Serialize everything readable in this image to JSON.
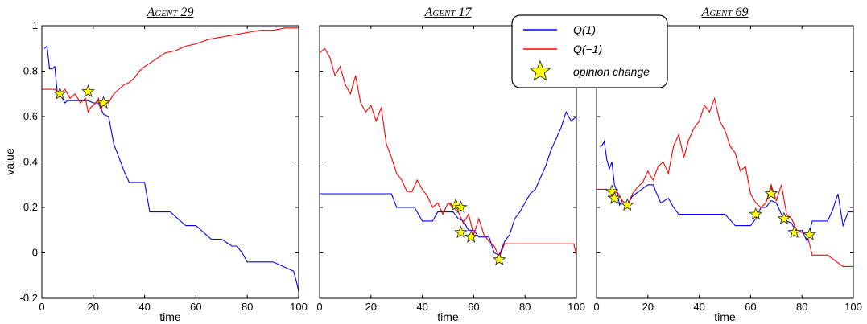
{
  "chart_data": {
    "type": "line",
    "xlabel": "time",
    "ylabel": "value",
    "xlim": [
      0,
      100
    ],
    "ylim": [
      -0.2,
      1.0
    ],
    "x_ticks": [
      0,
      20,
      40,
      60,
      80,
      100
    ],
    "y_ticks": [
      -0.2,
      0,
      0.2,
      0.4,
      0.6,
      0.8,
      1
    ],
    "y_tick_labels": [
      "-0.2",
      "0",
      "0.2",
      "0.4",
      "0.6",
      "0.8",
      "1"
    ],
    "colors": {
      "q1": "#0000ff",
      "qm1": "#ff0000",
      "star_fill": "#ffff00",
      "star_stroke": "#333333"
    },
    "legend": {
      "placement": "top-center",
      "entries": [
        {
          "label": "Q(1)",
          "kind": "line",
          "color": "#0000ff"
        },
        {
          "label": "Q(−1)",
          "kind": "line",
          "color": "#ff0000"
        },
        {
          "label": "opinion change",
          "kind": "star",
          "color": "#ffff00"
        }
      ]
    },
    "panels": [
      {
        "title": "Agent 29",
        "series": [
          {
            "name": "Q(1)",
            "color": "#0000ff",
            "x": [
              1,
              2,
              3,
              4,
              5,
              6,
              7,
              8,
              9,
              10,
              12,
              14,
              16,
              18,
              20,
              22,
              24,
              26,
              28,
              30,
              32,
              34,
              40,
              42,
              50,
              56,
              60,
              66,
              70,
              74,
              76,
              78,
              80,
              88,
              90,
              98,
              99,
              100
            ],
            "y": [
              0.9,
              0.91,
              0.81,
              0.81,
              0.82,
              0.71,
              0.7,
              0.68,
              0.66,
              0.67,
              0.67,
              0.67,
              0.67,
              0.67,
              0.66,
              0.66,
              0.61,
              0.6,
              0.48,
              0.42,
              0.36,
              0.31,
              0.31,
              0.18,
              0.18,
              0.12,
              0.12,
              0.06,
              0.06,
              0.03,
              0.03,
              0.0,
              -0.04,
              -0.04,
              -0.04,
              -0.08,
              -0.12,
              -0.17
            ]
          },
          {
            "name": "Q(−1)",
            "color": "#ff0000",
            "x": [
              0,
              5,
              7,
              9,
              11,
              13,
              15,
              17,
              18,
              19,
              20,
              21,
              22,
              23,
              24,
              26,
              28,
              30,
              32,
              34,
              36,
              38,
              40,
              44,
              48,
              52,
              56,
              60,
              65,
              70,
              75,
              80,
              85,
              90,
              95,
              100
            ],
            "y": [
              0.72,
              0.72,
              0.7,
              0.72,
              0.68,
              0.7,
              0.66,
              0.68,
              0.62,
              0.64,
              0.65,
              0.66,
              0.68,
              0.63,
              0.66,
              0.66,
              0.7,
              0.72,
              0.74,
              0.75,
              0.77,
              0.8,
              0.82,
              0.85,
              0.88,
              0.89,
              0.91,
              0.92,
              0.94,
              0.95,
              0.96,
              0.97,
              0.98,
              0.98,
              0.99,
              0.99
            ]
          }
        ],
        "opinion_changes": [
          {
            "x": 7,
            "y": 0.7
          },
          {
            "x": 18,
            "y": 0.71
          },
          {
            "x": 24,
            "y": 0.66
          }
        ]
      },
      {
        "title": "Agent 17",
        "series": [
          {
            "name": "Q(1)",
            "color": "#0000ff",
            "x": [
              0,
              10,
              20,
              28,
              30,
              32,
              37,
              40,
              44,
              46,
              50,
              52,
              54,
              56,
              58,
              60,
              62,
              64,
              66,
              68,
              70,
              72,
              74,
              76,
              78,
              80,
              82,
              84,
              86,
              88,
              90,
              92,
              94,
              96,
              98,
              100
            ],
            "y": [
              0.26,
              0.26,
              0.26,
              0.26,
              0.2,
              0.2,
              0.2,
              0.14,
              0.14,
              0.18,
              0.18,
              0.18,
              0.15,
              0.14,
              0.1,
              0.1,
              0.07,
              0.07,
              0.07,
              0.0,
              -0.01,
              0.05,
              0.08,
              0.15,
              0.18,
              0.22,
              0.26,
              0.28,
              0.33,
              0.38,
              0.45,
              0.5,
              0.55,
              0.62,
              0.58,
              0.6
            ]
          },
          {
            "name": "Q(−1)",
            "color": "#ff0000",
            "x": [
              0,
              2,
              4,
              6,
              8,
              10,
              12,
              14,
              16,
              18,
              20,
              22,
              24,
              26,
              28,
              30,
              32,
              34,
              36,
              38,
              40,
              42,
              44,
              46,
              48,
              50,
              52,
              54,
              56,
              58,
              60,
              62,
              64,
              66,
              68,
              70,
              72,
              80,
              90,
              99,
              100
            ],
            "y": [
              0.88,
              0.9,
              0.86,
              0.78,
              0.82,
              0.74,
              0.7,
              0.78,
              0.66,
              0.62,
              0.65,
              0.58,
              0.64,
              0.48,
              0.42,
              0.35,
              0.32,
              0.27,
              0.27,
              0.32,
              0.28,
              0.25,
              0.2,
              0.22,
              0.17,
              0.22,
              0.2,
              0.18,
              0.13,
              0.17,
              0.08,
              0.15,
              0.08,
              0.05,
              0.03,
              -0.02,
              0.04,
              0.04,
              0.04,
              0.04,
              -0.01
            ]
          }
        ],
        "opinion_changes": [
          {
            "x": 53,
            "y": 0.21
          },
          {
            "x": 55,
            "y": 0.2
          },
          {
            "x": 55,
            "y": 0.09
          },
          {
            "x": 59,
            "y": 0.07
          },
          {
            "x": 70,
            "y": -0.03
          }
        ]
      },
      {
        "title": "Agent 69",
        "series": [
          {
            "name": "Q(1)",
            "color": "#0000ff",
            "x": [
              1,
              2,
              3,
              4,
              5,
              6,
              7,
              8,
              9,
              10,
              12,
              14,
              20,
              22,
              25,
              28,
              30,
              32,
              40,
              50,
              54,
              60,
              62,
              64,
              66,
              68,
              70,
              72,
              74,
              76,
              78,
              80,
              82,
              84,
              86,
              88,
              90,
              92,
              94,
              96,
              98,
              100
            ],
            "y": [
              0.47,
              0.47,
              0.49,
              0.41,
              0.37,
              0.4,
              0.3,
              0.27,
              0.21,
              0.23,
              0.21,
              0.25,
              0.3,
              0.3,
              0.22,
              0.24,
              0.2,
              0.17,
              0.17,
              0.17,
              0.12,
              0.12,
              0.15,
              0.2,
              0.2,
              0.23,
              0.22,
              0.17,
              0.14,
              0.13,
              0.09,
              0.1,
              0.05,
              0.14,
              0.14,
              0.14,
              0.14,
              0.19,
              0.26,
              0.12,
              0.18,
              0.18
            ]
          },
          {
            "name": "Q(−1)",
            "color": "#ff0000",
            "x": [
              0,
              4,
              6,
              8,
              10,
              12,
              14,
              16,
              18,
              20,
              22,
              24,
              26,
              28,
              30,
              32,
              34,
              36,
              38,
              40,
              42,
              44,
              46,
              48,
              50,
              52,
              54,
              56,
              58,
              60,
              62,
              64,
              66,
              68,
              70,
              72,
              74,
              76,
              78,
              80,
              82,
              84,
              90,
              96,
              100
            ],
            "y": [
              0.28,
              0.28,
              0.25,
              0.27,
              0.23,
              0.21,
              0.26,
              0.29,
              0.31,
              0.36,
              0.32,
              0.38,
              0.4,
              0.35,
              0.47,
              0.52,
              0.42,
              0.5,
              0.55,
              0.58,
              0.65,
              0.62,
              0.68,
              0.58,
              0.54,
              0.47,
              0.44,
              0.36,
              0.38,
              0.26,
              0.22,
              0.2,
              0.22,
              0.3,
              0.23,
              0.3,
              0.17,
              0.15,
              0.1,
              0.09,
              0.08,
              -0.01,
              -0.01,
              -0.06,
              -0.06
            ]
          }
        ],
        "opinion_changes": [
          {
            "x": 6,
            "y": 0.27
          },
          {
            "x": 7,
            "y": 0.24
          },
          {
            "x": 12,
            "y": 0.21
          },
          {
            "x": 62,
            "y": 0.17
          },
          {
            "x": 68,
            "y": 0.26
          },
          {
            "x": 73,
            "y": 0.15
          },
          {
            "x": 77,
            "y": 0.09
          },
          {
            "x": 83,
            "y": 0.08
          }
        ]
      }
    ]
  }
}
